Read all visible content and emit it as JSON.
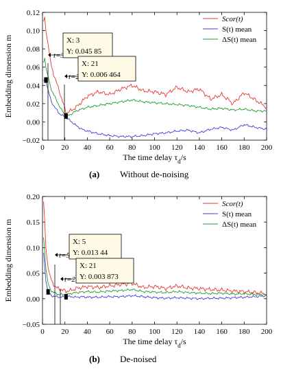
{
  "chart_data": [
    {
      "type": "line",
      "caption_label": "(a)",
      "caption_text": "Without de-noising",
      "xlabel": "The time delay τ",
      "xlabel_sub": "d",
      "xlabel_unit": "/s",
      "ylabel": "Embedding dimension m",
      "xlim": [
        0,
        200
      ],
      "ylim": [
        -0.02,
        0.12
      ],
      "xticks": [
        0,
        20,
        40,
        60,
        80,
        100,
        120,
        140,
        160,
        180,
        200
      ],
      "yticks": [
        -0.02,
        0.0,
        0.02,
        0.04,
        0.06,
        0.08,
        0.1,
        0.12
      ],
      "ytick_labels": [
        "−0.02",
        "0.00",
        "0.02",
        "0.04",
        "0.06",
        "0.08",
        "0.10",
        "0.12"
      ],
      "legend_position": "top-right",
      "series": [
        {
          "name": "Scor(t)",
          "color": "#e8372c",
          "x": [
            1,
            2,
            3,
            5,
            8,
            12,
            16,
            21,
            25,
            30,
            35,
            40,
            50,
            60,
            70,
            80,
            90,
            100,
            110,
            120,
            130,
            140,
            150,
            160,
            170,
            180,
            190,
            200
          ],
          "y": [
            0.11,
            0.115,
            0.1,
            0.085,
            0.06,
            0.045,
            0.03,
            0.01,
            0.012,
            0.016,
            0.022,
            0.028,
            0.033,
            0.03,
            0.036,
            0.04,
            0.034,
            0.033,
            0.03,
            0.038,
            0.033,
            0.036,
            0.025,
            0.03,
            0.02,
            0.032,
            0.024,
            0.016
          ]
        },
        {
          "name": "S(t) mean",
          "color": "#3a3fd6",
          "x": [
            1,
            2,
            3,
            5,
            8,
            12,
            16,
            21,
            25,
            30,
            35,
            40,
            50,
            60,
            70,
            80,
            90,
            100,
            110,
            120,
            130,
            140,
            150,
            160,
            170,
            180,
            190,
            200
          ],
          "y": [
            0.045,
            0.047,
            0.045,
            0.035,
            0.022,
            0.014,
            0.008,
            0.005,
            0.001,
            -0.004,
            -0.008,
            -0.01,
            -0.013,
            -0.015,
            -0.016,
            -0.016,
            -0.015,
            -0.013,
            -0.012,
            -0.01,
            -0.009,
            -0.012,
            -0.008,
            -0.006,
            -0.009,
            -0.003,
            -0.006,
            -0.008
          ]
        },
        {
          "name": "ΔS(t) mean",
          "color": "#1f9a2c",
          "x": [
            1,
            2,
            3,
            5,
            8,
            12,
            16,
            21,
            25,
            30,
            35,
            40,
            50,
            60,
            70,
            80,
            90,
            100,
            110,
            120,
            130,
            140,
            150,
            160,
            170,
            180,
            190,
            200
          ],
          "y": [
            0.065,
            0.07,
            0.06,
            0.05,
            0.035,
            0.025,
            0.015,
            0.006,
            0.008,
            0.012,
            0.014,
            0.016,
            0.018,
            0.02,
            0.022,
            0.024,
            0.022,
            0.021,
            0.02,
            0.019,
            0.018,
            0.016,
            0.014,
            0.015,
            0.013,
            0.014,
            0.012,
            0.012
          ]
        }
      ],
      "annotations": [
        {
          "marker_label": "t=3",
          "x": 3,
          "y": 0.04585,
          "box_x_text": "X: 3",
          "box_y_text": "Y: 0.045 85"
        },
        {
          "marker_label": "t=21",
          "x": 21,
          "y": 0.006464,
          "box_x_text": "X: 21",
          "box_y_text": "Y: 0.006 464"
        }
      ]
    },
    {
      "type": "line",
      "caption_label": "(b)",
      "caption_text": "De-noised",
      "xlabel": "The time delay τ",
      "xlabel_sub": "d",
      "xlabel_unit": "/s",
      "ylabel": "Embedding dimension m",
      "xlim": [
        0,
        200
      ],
      "ylim": [
        -0.05,
        0.2
      ],
      "xticks": [
        0,
        20,
        40,
        60,
        80,
        100,
        120,
        140,
        160,
        180,
        200
      ],
      "yticks": [
        -0.05,
        0.0,
        0.05,
        0.1,
        0.15,
        0.2
      ],
      "ytick_labels": [
        "−0.05",
        "0.00",
        "0.05",
        "0.10",
        "0.15",
        "0.20"
      ],
      "legend_position": "top-right",
      "series": [
        {
          "name": "Scor(t)",
          "color": "#e8372c",
          "x": [
            1,
            2,
            3,
            5,
            8,
            12,
            16,
            21,
            25,
            30,
            35,
            40,
            50,
            60,
            70,
            80,
            90,
            100,
            110,
            120,
            130,
            140,
            150,
            160,
            170,
            180,
            190,
            200
          ],
          "y": [
            0.19,
            0.15,
            0.1,
            0.06,
            0.035,
            0.022,
            0.018,
            0.015,
            0.016,
            0.02,
            0.022,
            0.024,
            0.022,
            0.025,
            0.028,
            0.03,
            0.022,
            0.024,
            0.02,
            0.025,
            0.021,
            0.02,
            0.018,
            0.017,
            0.015,
            0.014,
            0.012,
            0.01
          ]
        },
        {
          "name": "S(t) mean",
          "color": "#3a3fd6",
          "x": [
            1,
            2,
            3,
            5,
            8,
            12,
            16,
            21,
            25,
            30,
            35,
            40,
            50,
            60,
            70,
            80,
            90,
            100,
            110,
            120,
            130,
            140,
            150,
            160,
            170,
            180,
            190,
            200
          ],
          "y": [
            0.09,
            0.06,
            0.035,
            0.013,
            0.006,
            0.004,
            0.003,
            0.004,
            0.004,
            0.003,
            0.004,
            0.003,
            0.003,
            0.004,
            0.004,
            0.006,
            0.004,
            0.002,
            0.001,
            0.002,
            0.001,
            0.0,
            0.001,
            0.001,
            0.002,
            0.003,
            0.004,
            0.006
          ]
        },
        {
          "name": "ΔS(t) mean",
          "color": "#1f9a2c",
          "x": [
            1,
            2,
            3,
            5,
            8,
            12,
            16,
            21,
            25,
            30,
            35,
            40,
            50,
            60,
            70,
            80,
            90,
            100,
            110,
            120,
            130,
            140,
            150,
            160,
            170,
            180,
            190,
            200
          ],
          "y": [
            0.12,
            0.09,
            0.06,
            0.03,
            0.015,
            0.01,
            0.008,
            0.008,
            0.01,
            0.012,
            0.013,
            0.014,
            0.013,
            0.015,
            0.016,
            0.018,
            0.014,
            0.013,
            0.012,
            0.014,
            0.012,
            0.011,
            0.01,
            0.011,
            0.009,
            0.01,
            0.008,
            0.008
          ]
        }
      ],
      "annotations": [
        {
          "marker_label": "t=5",
          "x": 5,
          "y": 0.01344,
          "box_x_text": "X: 5",
          "box_y_text": "Y: 0.013 44"
        },
        {
          "marker_label": "t=21",
          "x": 21,
          "y": 0.003873,
          "box_x_text": "X: 21",
          "box_y_text": "Y: 0.003 873"
        }
      ]
    }
  ]
}
